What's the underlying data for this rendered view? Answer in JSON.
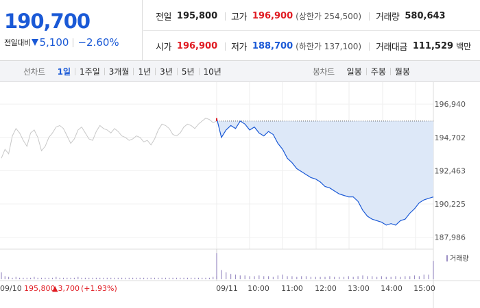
{
  "quote": {
    "current_price": "190,700",
    "diff_label": "전일대비",
    "diff_value": "5,100",
    "diff_rate": "−2.60%",
    "direction_icon": "down-triangle-icon",
    "prev_close_label": "전일",
    "prev_close": "195,800",
    "high_label": "고가",
    "high": "196,900",
    "upper_limit": "(상한가 254,500)",
    "volume_label": "거래량",
    "volume": "580,643",
    "open_label": "시가",
    "open": "196,900",
    "low_label": "저가",
    "low": "188,700",
    "lower_limit": "(하한가 137,100)",
    "amount_label": "거래대금",
    "amount": "111,529",
    "amount_unit": "백만"
  },
  "tabs": {
    "line_caption": "선차트",
    "line_tabs": [
      "1일",
      "1주일",
      "3개월",
      "1년",
      "3년",
      "5년",
      "10년"
    ],
    "line_active": 0,
    "candle_caption": "봉차트",
    "candle_tabs": [
      "일봉",
      "주봉",
      "월봉"
    ]
  },
  "colors": {
    "up": "#e01b22",
    "down": "#1a59d6",
    "prev_day_line": "#c8c8c8",
    "area_fill": "#dde8f8",
    "volume_bar": "#9b8ec4"
  },
  "chart_data": {
    "type": "line",
    "ylim": [
      187000,
      197500
    ],
    "yticks": [
      "196,940",
      "194,702",
      "192,463",
      "190,225",
      "187,986"
    ],
    "ytick_values": [
      196940,
      194702,
      192463,
      190225,
      187986
    ],
    "x_labels": [
      "09/10",
      "09/11",
      "10:00",
      "11:00",
      "12:00",
      "13:00",
      "14:00",
      "15:00"
    ],
    "prev_day_summary": {
      "date": "09/10",
      "close": "195,800",
      "change": "▲3,700",
      "rate": "(+1.93%)"
    },
    "reference_line": 195800,
    "volume_label": "거래량",
    "series": [
      {
        "name": "",
        "period": "09/10",
        "values": [
          193300,
          193900,
          193600,
          194800,
          195300,
          195000,
          194500,
          194100,
          195000,
          195200,
          194700,
          193800,
          194100,
          194700,
          195000,
          195400,
          195500,
          195300,
          194800,
          194300,
          194600,
          195200,
          195400,
          195000,
          194600,
          194500,
          195100,
          195500,
          195300,
          195200,
          195000,
          195300,
          195100,
          194800,
          194700,
          194500,
          194600,
          194800,
          194700,
          194400,
          194500,
          194200,
          194600,
          195200,
          195600,
          195500,
          195300,
          194900,
          194800,
          195000,
          195400,
          195600,
          195500,
          195300,
          195600,
          195800,
          196000,
          195900,
          195700,
          195800
        ]
      },
      {
        "name": "",
        "period": "09/11",
        "values": [
          196000,
          194700,
          195200,
          195500,
          195300,
          195800,
          195600,
          195200,
          195400,
          195000,
          194800,
          195100,
          194900,
          194300,
          193900,
          193300,
          193000,
          192600,
          192400,
          192200,
          192000,
          191900,
          191700,
          191400,
          191300,
          191100,
          190900,
          190800,
          190700,
          190700,
          190400,
          189800,
          189400,
          189200,
          189100,
          189000,
          188800,
          188900,
          188800,
          189100,
          189200,
          189600,
          189900,
          190300,
          190500,
          190600,
          190700
        ]
      }
    ],
    "volume": {
      "prev_day": [
        9,
        4,
        3,
        2,
        3,
        2,
        2,
        2,
        2,
        3,
        2,
        2,
        2,
        2,
        2,
        3,
        2,
        2,
        2,
        2,
        2,
        3,
        2,
        2,
        2,
        2,
        2,
        2,
        2,
        2,
        2,
        2,
        2,
        2,
        2,
        2,
        2,
        2,
        2,
        2,
        2,
        2,
        2,
        2,
        2,
        2,
        2,
        2,
        2,
        2,
        2,
        2,
        2,
        2,
        2,
        2,
        2,
        2,
        3,
        4
      ],
      "today": [
        34,
        12,
        9,
        7,
        6,
        5,
        5,
        4,
        4,
        5,
        4,
        4,
        3,
        5,
        6,
        4,
        4,
        3,
        4,
        4,
        3,
        3,
        3,
        3,
        4,
        3,
        3,
        3,
        4,
        3,
        4,
        5,
        4,
        4,
        3,
        4,
        3,
        3,
        4,
        3,
        4,
        4,
        5,
        4,
        6,
        6,
        24
      ]
    }
  }
}
